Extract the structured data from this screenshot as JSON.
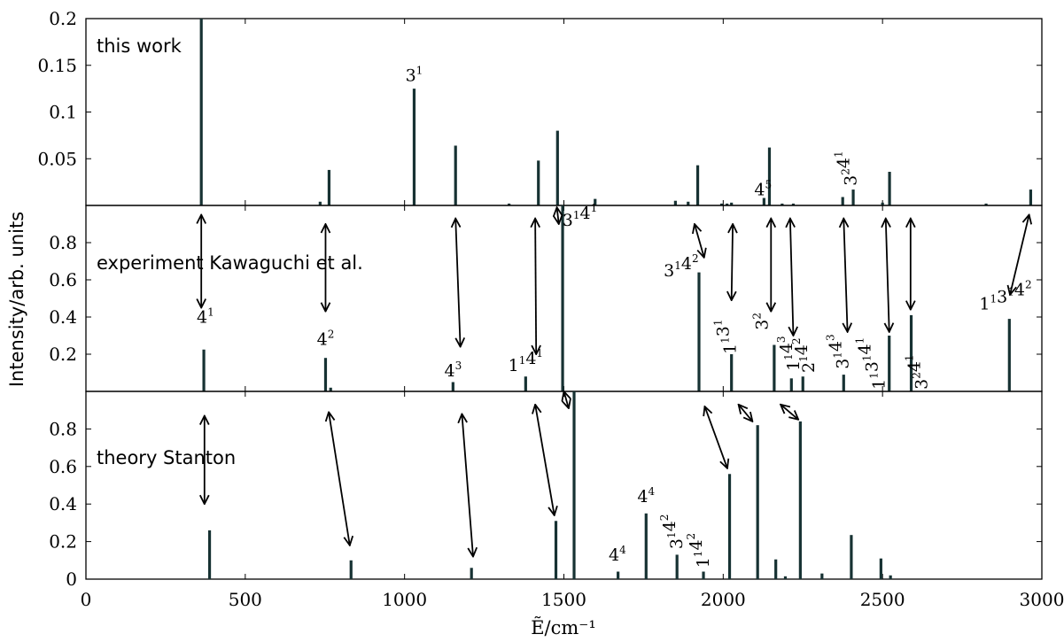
{
  "chart_data": {
    "type": "bar",
    "xlabel": "Ẽ/cm⁻¹",
    "ylabel": "Intensity/arb. units",
    "xlim": [
      0,
      3000
    ],
    "x_ticks": [
      0,
      500,
      1000,
      1500,
      2000,
      2500,
      3000
    ],
    "panels": [
      {
        "label": "this work",
        "ylim": [
          0,
          0.2
        ],
        "y_ticks": [
          0.05,
          0.1,
          0.15,
          0.2
        ],
        "y_tick_labels": [
          "0.05",
          "0.1",
          "0.15",
          "0.2"
        ],
        "x": [
          362,
          735,
          763,
          1030,
          1160,
          1328,
          1420,
          1480,
          1598,
          1850,
          1890,
          1920,
          1995,
          2012,
          2026,
          2145,
          2128,
          2185,
          2220,
          2375,
          2408,
          2500,
          2522,
          2825,
          2965
        ],
        "values": [
          0.2,
          0.004,
          0.038,
          0.125,
          0.064,
          0.002,
          0.048,
          0.08,
          0.007,
          0.005,
          0.004,
          0.043,
          0.002,
          0.002,
          0.003,
          0.062,
          0.008,
          0.002,
          0.002,
          0.009,
          0.017,
          0.003,
          0.036,
          0.002,
          0.017
        ],
        "annotations": [
          {
            "text": "3",
            "sup": "1",
            "x": 1030,
            "y": 0.133,
            "rotate": 0
          },
          {
            "text": "4",
            "sup": "5",
            "x": 2125,
            "y": 0.011,
            "rotate": 0
          },
          {
            "text": "3",
            "sup": "2",
            "text2": "4",
            "sup2": "1",
            "x": 2418,
            "y": 0.021,
            "rotate": -90
          }
        ]
      },
      {
        "label": "experiment Kawaguchi et al.",
        "ylim": [
          0,
          1.0
        ],
        "y_ticks": [
          0.2,
          0.4,
          0.6,
          0.8
        ],
        "y_tick_labels": [
          "0.2",
          "0.4",
          "0.6",
          "0.8"
        ],
        "x": [
          370,
          752,
          768,
          1152,
          1380,
          1496,
          1924,
          2026,
          2160,
          2214,
          2250,
          2378,
          2521,
          2590,
          2898
        ],
        "values": [
          0.225,
          0.18,
          0.02,
          0.05,
          0.08,
          1.0,
          0.64,
          0.2,
          0.25,
          0.07,
          0.08,
          0.09,
          0.3,
          0.41,
          0.39
        ],
        "annotations": [
          {
            "text": "4",
            "sup": "1",
            "x": 375,
            "y": 0.37,
            "rotate": 0
          },
          {
            "text": "4",
            "sup": "2",
            "x": 752,
            "y": 0.25,
            "rotate": 0
          },
          {
            "text": "4",
            "sup": "3",
            "x": 1152,
            "y": 0.08,
            "rotate": 0
          },
          {
            "text": "1",
            "sup": "1",
            "text2": "4",
            "sup2": "1",
            "x": 1380,
            "y": 0.11,
            "rotate": 0
          },
          {
            "text": "3",
            "sup": "1",
            "text2": "4",
            "sup2": "1",
            "x": 1550,
            "y": 0.89,
            "rotate": 0
          },
          {
            "text": "3",
            "sup": "1",
            "text2": "4",
            "sup2": "2",
            "x": 1868,
            "y": 0.62,
            "rotate": 0
          },
          {
            "text": "1",
            "sup": "1",
            "text2": "3",
            "sup2": "1",
            "x": 2040,
            "y": 0.2,
            "rotate": -90
          },
          {
            "text": "3",
            "sup": "2",
            "x": 2140,
            "y": 0.33,
            "rotate": -90
          },
          {
            "text": "1",
            "sup": "1",
            "text2": "4",
            "sup2": "3",
            "x": 2238,
            "y": 0.11,
            "rotate": -90
          },
          {
            "text": "2",
            "sup": "1",
            "text2": "4",
            "sup2": "2",
            "x": 2285,
            "y": 0.1,
            "rotate": -90
          },
          {
            "text": "3",
            "sup": "1",
            "text2": "4",
            "sup2": "3",
            "x": 2393,
            "y": 0.12,
            "rotate": -90
          },
          {
            "text": "1",
            "sup": "1",
            "text2": "3",
            "sup2": "1",
            "text3": "4",
            "sup3": "1",
            "x": 2506,
            "y": 0.01,
            "rotate": -90
          },
          {
            "text": "3",
            "sup": "2",
            "text2": "4",
            "sup2": "1",
            "x": 2640,
            "y": 0.01,
            "rotate": -90
          },
          {
            "text": "1",
            "sup": "1",
            "text2": "3",
            "sup2": "1",
            "text3": "4",
            "sup3": "2",
            "x": 2886,
            "y": 0.44,
            "rotate": 0
          }
        ]
      },
      {
        "label": "theory Stanton",
        "ylim": [
          0,
          1.0
        ],
        "y_ticks": [
          0,
          0.2,
          0.4,
          0.6,
          0.8
        ],
        "y_tick_labels": [
          "0",
          "0.2",
          "0.4",
          "0.6",
          "0.8"
        ],
        "x": [
          388,
          832,
          1210,
          1475,
          1532,
          1670,
          1758,
          1855,
          1938,
          2020,
          2108,
          2165,
          2195,
          2242,
          2310,
          2402,
          2495,
          2525
        ],
        "values": [
          0.26,
          0.1,
          0.06,
          0.31,
          1.0,
          0.04,
          0.35,
          0.13,
          0.04,
          0.56,
          0.82,
          0.105,
          0.015,
          0.84,
          0.03,
          0.235,
          0.11,
          0.02
        ],
        "annotations": [
          {
            "text": "4",
            "sup": "4",
            "x": 1668,
            "y": 0.1,
            "rotate": 0
          },
          {
            "text": "4",
            "sup": "4",
            "x": 1758,
            "y": 0.41,
            "rotate": 0
          },
          {
            "text": "3",
            "sup": "1",
            "text2": "4",
            "sup2": "2",
            "x": 1871,
            "y": 0.16,
            "rotate": -90
          },
          {
            "text": "1",
            "sup": "1",
            "text2": "4",
            "sup2": "2",
            "x": 1955,
            "y": 0.06,
            "rotate": -90
          }
        ]
      }
    ],
    "arrows": [
      {
        "x1": 362,
        "y1": 0.95,
        "x2": 362,
        "y2": 0.45,
        "double": true,
        "region": "exp"
      },
      {
        "x1": 752,
        "y1": 0.9,
        "x2": 752,
        "y2": 0.43,
        "double": true,
        "region": "exp"
      },
      {
        "x1": 1160,
        "y1": 0.93,
        "x2": 1175,
        "y2": 0.24,
        "double": true,
        "region": "exp"
      },
      {
        "x1": 1410,
        "y1": 0.93,
        "x2": 1413,
        "y2": 0.2,
        "double": true,
        "region": "exp"
      },
      {
        "x1": 1478,
        "y1": 0.99,
        "x2": 1484,
        "y2": 0.9,
        "double": true,
        "region": "exp"
      },
      {
        "x1": 1910,
        "y1": 0.9,
        "x2": 1940,
        "y2": 0.72,
        "double": true,
        "region": "exp"
      },
      {
        "x1": 2030,
        "y1": 0.9,
        "x2": 2026,
        "y2": 0.49,
        "double": true,
        "region": "exp"
      },
      {
        "x1": 2150,
        "y1": 0.93,
        "x2": 2150,
        "y2": 0.43,
        "double": true,
        "region": "exp"
      },
      {
        "x1": 2210,
        "y1": 0.93,
        "x2": 2220,
        "y2": 0.3,
        "double": true,
        "region": "exp"
      },
      {
        "x1": 2378,
        "y1": 0.93,
        "x2": 2390,
        "y2": 0.32,
        "double": true,
        "region": "exp"
      },
      {
        "x1": 2510,
        "y1": 0.93,
        "x2": 2521,
        "y2": 0.32,
        "double": true,
        "region": "exp"
      },
      {
        "x1": 2588,
        "y1": 0.93,
        "x2": 2588,
        "y2": 0.44,
        "double": true,
        "region": "exp"
      },
      {
        "x1": 2960,
        "y1": 0.95,
        "x2": 2900,
        "y2": 0.52,
        "double": true,
        "region": "exp"
      },
      {
        "x1": 372,
        "y1": 0.87,
        "x2": 372,
        "y2": 0.4,
        "double": true,
        "region": "theory"
      },
      {
        "x1": 762,
        "y1": 0.89,
        "x2": 828,
        "y2": 0.18,
        "double": true,
        "region": "theory"
      },
      {
        "x1": 1180,
        "y1": 0.88,
        "x2": 1215,
        "y2": 0.12,
        "double": true,
        "region": "theory"
      },
      {
        "x1": 1410,
        "y1": 0.93,
        "x2": 1470,
        "y2": 0.34,
        "double": true,
        "region": "theory"
      },
      {
        "x1": 1500,
        "y1": 1.0,
        "x2": 1515,
        "y2": 0.91,
        "double": true,
        "region": "theory"
      },
      {
        "x1": 1942,
        "y1": 0.92,
        "x2": 2013,
        "y2": 0.59,
        "double": true,
        "region": "theory"
      },
      {
        "x1": 2048,
        "y1": 0.93,
        "x2": 2092,
        "y2": 0.84,
        "double": true,
        "region": "theory"
      },
      {
        "x1": 2180,
        "y1": 0.93,
        "x2": 2236,
        "y2": 0.85,
        "double": true,
        "region": "theory"
      }
    ]
  }
}
